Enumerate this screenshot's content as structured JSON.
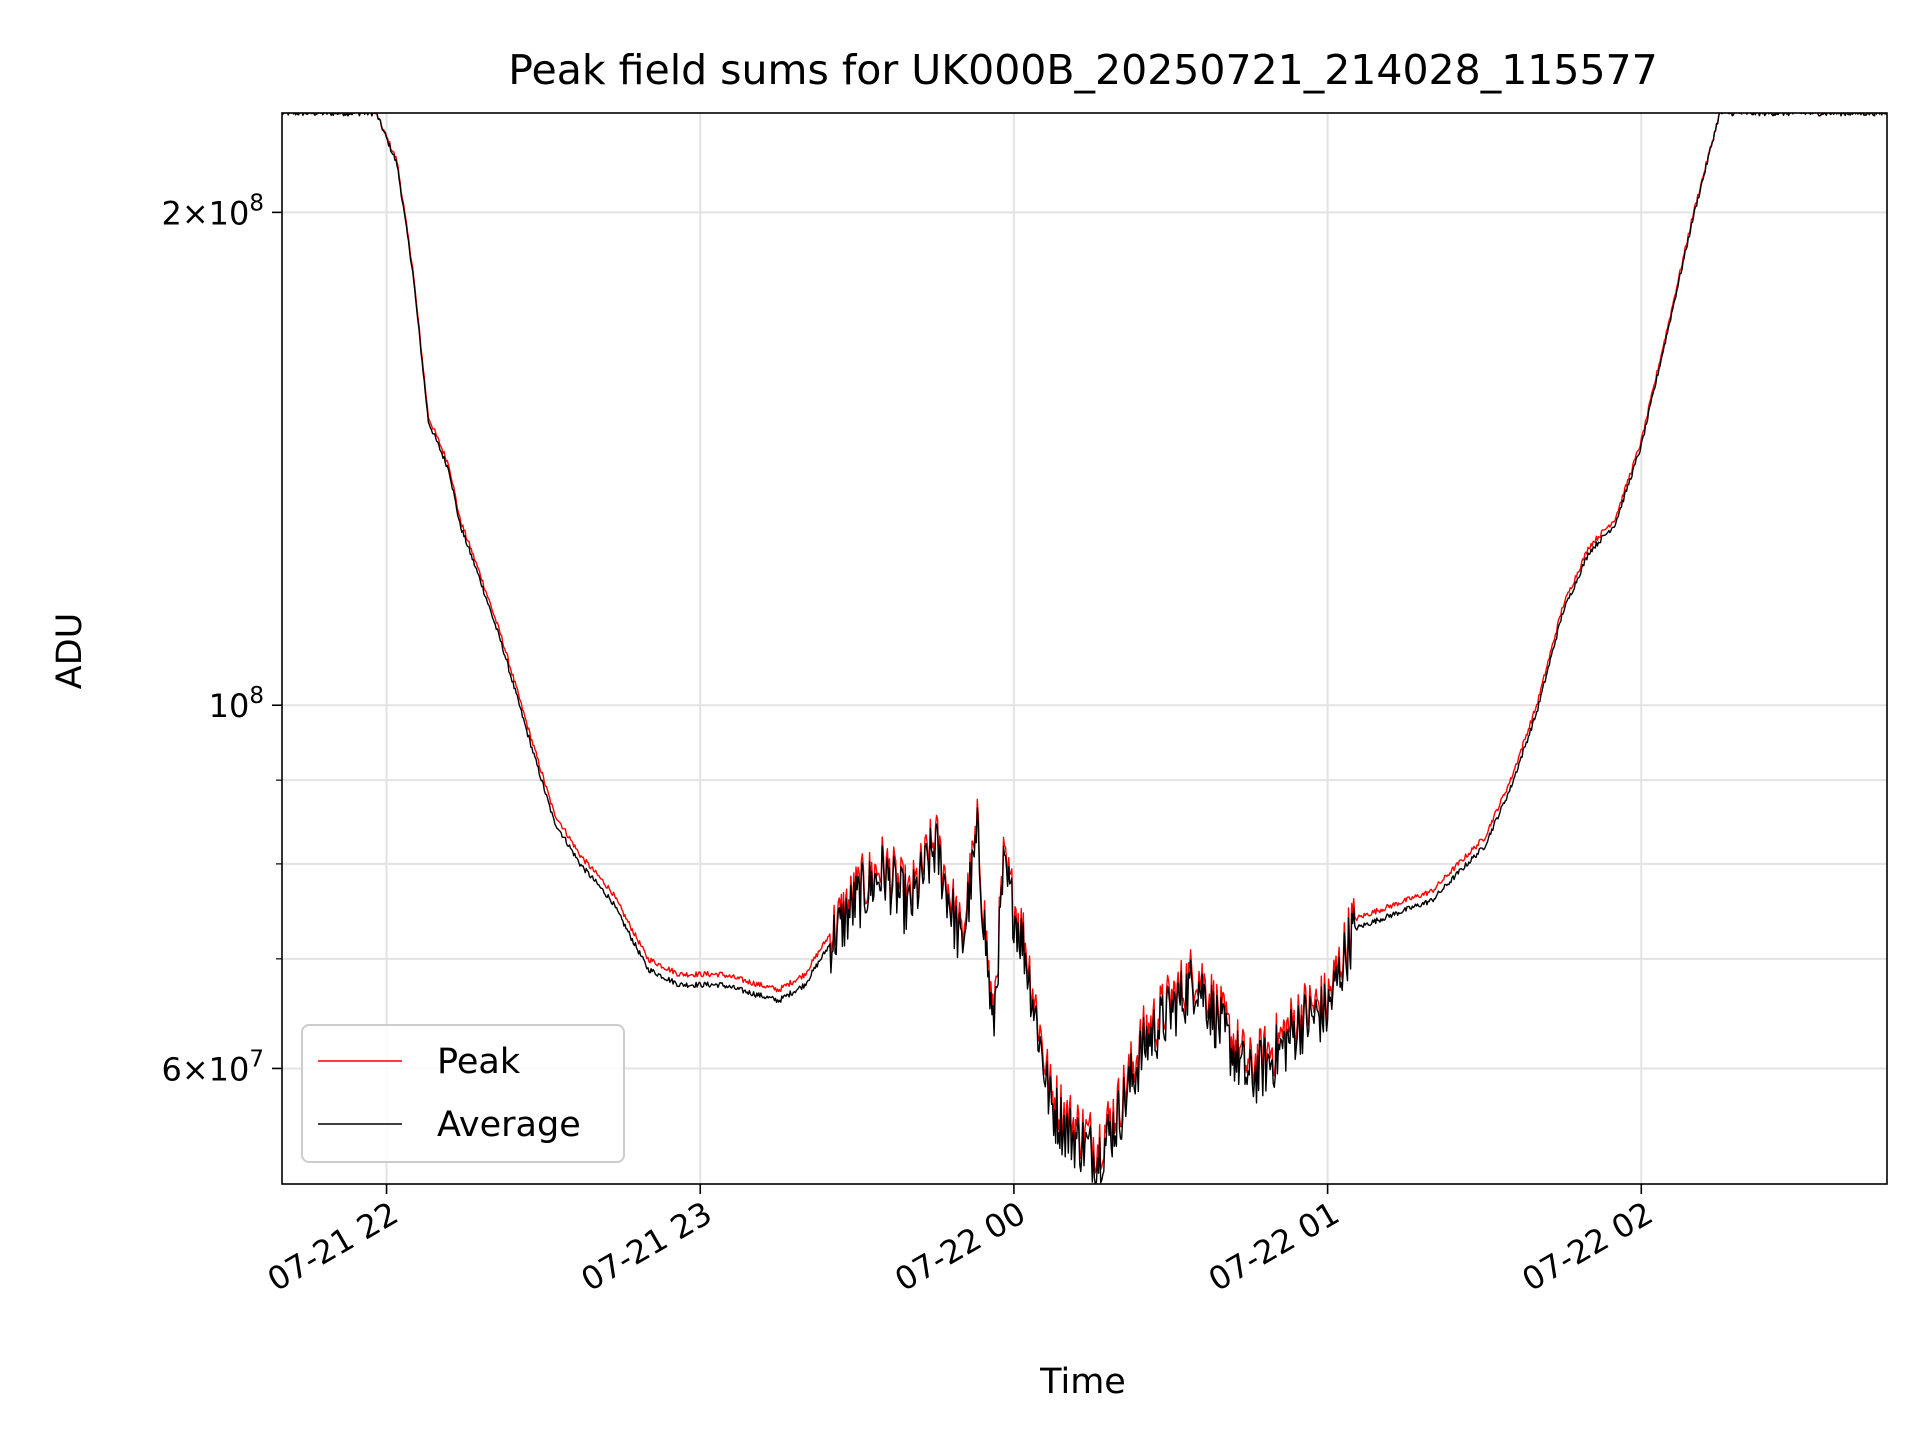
{
  "chart_data": {
    "type": "line",
    "title": "Peak field sums for UK000B_20250721_214028_115577",
    "xlabel": "Time",
    "ylabel": "ADU",
    "x_ticks": [
      "07-21 22",
      "07-21 23",
      "07-22 00",
      "07-22 01",
      "07-22 02"
    ],
    "y_ticks": [
      {
        "value": 60000000,
        "base": "6×10",
        "exp": "7"
      },
      {
        "value": 100000000,
        "base": "10",
        "exp": "8"
      },
      {
        "value": 200000000,
        "base": "2×10",
        "exp": "8"
      }
    ],
    "y_minor_ticks": [
      70000000,
      80000000,
      90000000
    ],
    "xlim": [
      "2025-07-21 21:40",
      "2025-07-22 02:47"
    ],
    "ylim": [
      51000000,
      230000000
    ],
    "yscale": "log",
    "grid": true,
    "legend_position": "lower-left",
    "series": [
      {
        "name": "Peak",
        "color": "#ff0000",
        "x": [
          "2025-07-21 21:40",
          "2025-07-21 21:54",
          "2025-07-21 21:58",
          "2025-07-21 22:02",
          "2025-07-21 22:05",
          "2025-07-21 22:08",
          "2025-07-21 22:12",
          "2025-07-21 22:14",
          "2025-07-21 22:18",
          "2025-07-21 22:22",
          "2025-07-21 22:27",
          "2025-07-21 22:32",
          "2025-07-21 22:37",
          "2025-07-21 22:43",
          "2025-07-21 22:50",
          "2025-07-21 22:56",
          "2025-07-21 23:04",
          "2025-07-21 23:15",
          "2025-07-21 23:20",
          "2025-07-21 23:30",
          "2025-07-21 23:35",
          "2025-07-21 23:40",
          "2025-07-21 23:45",
          "2025-07-21 23:50",
          "2025-07-21 23:53",
          "2025-07-21 23:56",
          "2025-07-21 23:58",
          "2025-07-22 00:02",
          "2025-07-22 00:07",
          "2025-07-22 00:10",
          "2025-07-22 00:16",
          "2025-07-22 00:20",
          "2025-07-22 00:25",
          "2025-07-22 00:30",
          "2025-07-22 00:35",
          "2025-07-22 00:40",
          "2025-07-22 00:45",
          "2025-07-22 00:50",
          "2025-07-22 00:55",
          "2025-07-22 01:00",
          "2025-07-22 01:05",
          "2025-07-22 01:10",
          "2025-07-22 01:15",
          "2025-07-22 01:20",
          "2025-07-22 01:25",
          "2025-07-22 01:30",
          "2025-07-22 01:35",
          "2025-07-22 01:40",
          "2025-07-22 01:45",
          "2025-07-22 01:50",
          "2025-07-22 01:55",
          "2025-07-22 02:00",
          "2025-07-22 02:05",
          "2025-07-22 02:10",
          "2025-07-22 02:15",
          "2025-07-22 02:20",
          "2025-07-22 02:47"
        ],
        "y": [
          230000000,
          230000000,
          230000000,
          215000000,
          185000000,
          150000000,
          140000000,
          130000000,
          120000000,
          110000000,
          97000000,
          86000000,
          81000000,
          77000000,
          70000000,
          68500000,
          68500000,
          67000000,
          68500000,
          77000000,
          80000000,
          76000000,
          83000000,
          72000000,
          84000000,
          64000000,
          80000000,
          72000000,
          58000000,
          56000000,
          54000000,
          57000000,
          63000000,
          66000000,
          69000000,
          64000000,
          60000000,
          62000000,
          65000000,
          66000000,
          74000000,
          75000000,
          76000000,
          77000000,
          80000000,
          83000000,
          90000000,
          100000000,
          115000000,
          125000000,
          130000000,
          145000000,
          170000000,
          200000000,
          230000000,
          230000000,
          230000000
        ]
      },
      {
        "name": "Average",
        "color": "#000000",
        "x": [
          "2025-07-21 21:40",
          "2025-07-21 21:54",
          "2025-07-21 21:58",
          "2025-07-21 22:02",
          "2025-07-21 22:05",
          "2025-07-21 22:08",
          "2025-07-21 22:12",
          "2025-07-21 22:14",
          "2025-07-21 22:18",
          "2025-07-21 22:22",
          "2025-07-21 22:27",
          "2025-07-21 22:32",
          "2025-07-21 22:37",
          "2025-07-21 22:43",
          "2025-07-21 22:50",
          "2025-07-21 22:56",
          "2025-07-21 23:04",
          "2025-07-21 23:15",
          "2025-07-21 23:20",
          "2025-07-21 23:30",
          "2025-07-21 23:35",
          "2025-07-21 23:40",
          "2025-07-21 23:45",
          "2025-07-21 23:50",
          "2025-07-21 23:53",
          "2025-07-21 23:56",
          "2025-07-21 23:58",
          "2025-07-22 00:02",
          "2025-07-22 00:07",
          "2025-07-22 00:10",
          "2025-07-22 00:16",
          "2025-07-22 00:20",
          "2025-07-22 00:25",
          "2025-07-22 00:30",
          "2025-07-22 00:35",
          "2025-07-22 00:40",
          "2025-07-22 00:45",
          "2025-07-22 00:50",
          "2025-07-22 00:55",
          "2025-07-22 01:00",
          "2025-07-22 01:05",
          "2025-07-22 01:10",
          "2025-07-22 01:15",
          "2025-07-22 01:20",
          "2025-07-22 01:25",
          "2025-07-22 01:30",
          "2025-07-22 01:35",
          "2025-07-22 01:40",
          "2025-07-22 01:45",
          "2025-07-22 01:50",
          "2025-07-22 01:55",
          "2025-07-22 02:00",
          "2025-07-22 02:05",
          "2025-07-22 02:10",
          "2025-07-22 02:15",
          "2025-07-22 02:20",
          "2025-07-22 02:47"
        ],
        "y": [
          230000000,
          230000000,
          230000000,
          214000000,
          184000000,
          149000000,
          139000000,
          129000000,
          119000000,
          109000000,
          96000000,
          85000000,
          80000000,
          76000000,
          69000000,
          67500000,
          67500000,
          66000000,
          67500000,
          76000000,
          79000000,
          75000000,
          82000000,
          71000000,
          83000000,
          63000000,
          79000000,
          71000000,
          57000000,
          55000000,
          53000000,
          56000000,
          62000000,
          65000000,
          68000000,
          63000000,
          59000000,
          61000000,
          64000000,
          65000000,
          73000000,
          74000000,
          75000000,
          76000000,
          79000000,
          82000000,
          89000000,
          99000000,
          114000000,
          124000000,
          129000000,
          144000000,
          169000000,
          199000000,
          230000000,
          230000000,
          230000000
        ]
      }
    ]
  }
}
